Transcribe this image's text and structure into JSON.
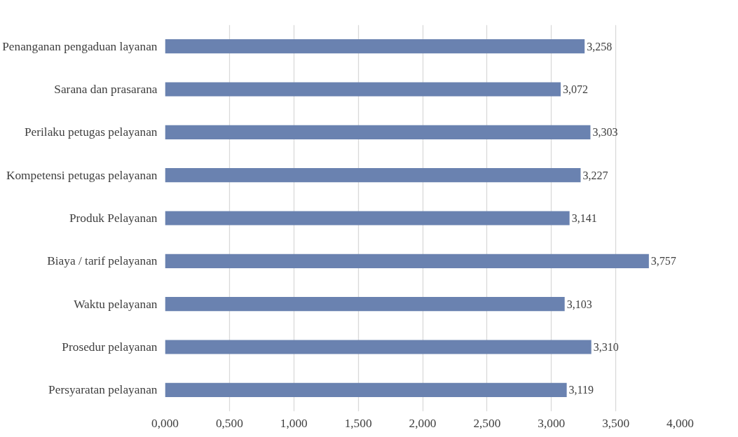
{
  "chart_data": {
    "type": "bar",
    "orientation": "horizontal",
    "categories": [
      "Penanganan pengaduan layanan",
      "Sarana dan prasarana",
      "Perilaku petugas pelayanan",
      "Kompetensi petugas pelayanan",
      "Produk Pelayanan",
      "Biaya / tarif pelayanan",
      "Waktu pelayanan",
      "Prosedur pelayanan",
      "Persyaratan pelayanan"
    ],
    "values": [
      3.258,
      3.072,
      3.303,
      3.227,
      3.141,
      3.757,
      3.103,
      3.31,
      3.119
    ],
    "value_labels": [
      "3,258",
      "3,072",
      "3,303",
      "3,227",
      "3,141",
      "3,757",
      "3,103",
      "3,310",
      "3,119"
    ],
    "color": "#6a82b0",
    "xlim": [
      0,
      4
    ],
    "xticks": [
      {
        "value": 0,
        "label": "0,000"
      },
      {
        "value": 0.5,
        "label": "0,500"
      },
      {
        "value": 1,
        "label": "1,000"
      },
      {
        "value": 1.5,
        "label": "1,500"
      },
      {
        "value": 2,
        "label": "2,000"
      },
      {
        "value": 2.5,
        "label": "2,500"
      },
      {
        "value": 3,
        "label": "3,000"
      },
      {
        "value": 3.5,
        "label": "3,500"
      },
      {
        "value": 4,
        "label": "4,000"
      }
    ],
    "grid": "x"
  }
}
